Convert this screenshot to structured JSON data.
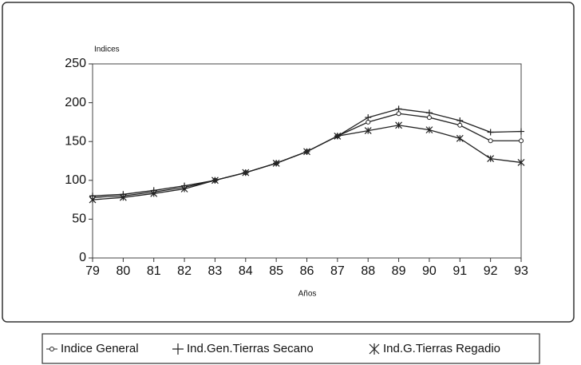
{
  "chart_data": {
    "type": "line",
    "y_label": "Indices",
    "x_label": "Años",
    "x": [
      79,
      80,
      81,
      82,
      83,
      84,
      85,
      86,
      87,
      88,
      89,
      90,
      91,
      92,
      93
    ],
    "xlim": [
      79,
      93
    ],
    "xticks": [
      79,
      80,
      81,
      82,
      83,
      84,
      85,
      86,
      87,
      88,
      89,
      90,
      91,
      92,
      93
    ],
    "ylim": [
      0,
      250
    ],
    "yticks": [
      0,
      50,
      100,
      150,
      200,
      250
    ],
    "series": [
      {
        "name": "Indice General",
        "color": "#222222",
        "marker": "circle",
        "values": [
          78,
          80,
          85,
          91,
          100,
          110,
          122,
          137,
          157,
          175,
          186,
          181,
          171,
          151,
          151
        ]
      },
      {
        "name": "Ind.Gen.Tierras Secano",
        "color": "#222222",
        "marker": "plus",
        "values": [
          80,
          82,
          87,
          93,
          100,
          110,
          122,
          137,
          157,
          181,
          192,
          187,
          177,
          162,
          163
        ]
      },
      {
        "name": "Ind.G.Tierras Regadio",
        "color": "#222222",
        "marker": "asterisk",
        "values": [
          75,
          78,
          83,
          89,
          100,
          110,
          122,
          137,
          157,
          164,
          171,
          165,
          154,
          128,
          123
        ]
      }
    ]
  }
}
